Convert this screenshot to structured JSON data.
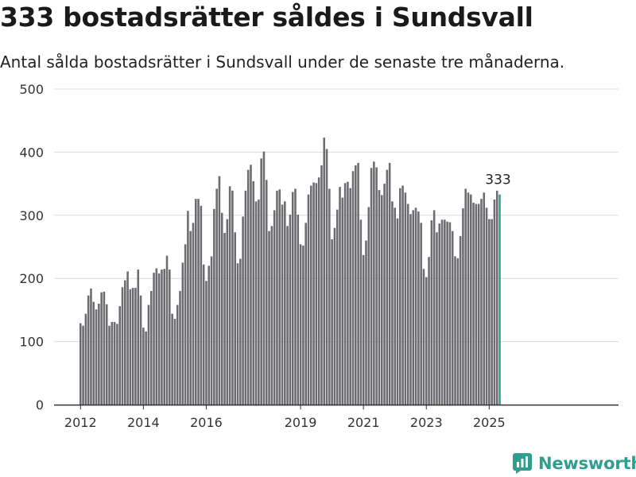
{
  "title": "333 bostadsrätter såldes i Sundsvall",
  "subtitle": "Antal sålda bostadsrätter i Sundsvall under de senaste tre månaderna.",
  "brand": "Newsworthy",
  "colors": {
    "bar": "#6b6b70",
    "highlight": "#2f9e8f",
    "grid": "#dcdcdc",
    "brand": "#2f9e8f"
  },
  "chart_data": {
    "type": "bar",
    "x_start": "2012-01",
    "x_end": "2025-04",
    "ylim": [
      0,
      500
    ],
    "yticks": [
      0,
      100,
      200,
      300,
      400,
      500
    ],
    "xticks": [
      2012,
      2014,
      2016,
      2019,
      2021,
      2023,
      2025
    ],
    "values": [
      129,
      125,
      144,
      173,
      184,
      163,
      151,
      160,
      178,
      179,
      159,
      125,
      131,
      131,
      128,
      156,
      186,
      197,
      211,
      183,
      185,
      185,
      214,
      173,
      122,
      116,
      158,
      180,
      209,
      216,
      208,
      214,
      215,
      236,
      214,
      144,
      136,
      158,
      180,
      225,
      254,
      307,
      275,
      288,
      326,
      326,
      315,
      222,
      196,
      220,
      235,
      310,
      342,
      362,
      304,
      272,
      294,
      346,
      339,
      273,
      224,
      231,
      298,
      339,
      372,
      380,
      354,
      322,
      325,
      390,
      401,
      356,
      275,
      283,
      308,
      339,
      341,
      317,
      322,
      283,
      301,
      337,
      342,
      301,
      254,
      252,
      288,
      333,
      347,
      352,
      351,
      360,
      379,
      423,
      405,
      342,
      262,
      280,
      309,
      345,
      328,
      351,
      353,
      343,
      370,
      379,
      383,
      293,
      237,
      260,
      313,
      375,
      385,
      376,
      340,
      332,
      350,
      372,
      383,
      322,
      312,
      295,
      343,
      347,
      336,
      318,
      302,
      308,
      312,
      306,
      288,
      215,
      202,
      234,
      292,
      308,
      273,
      287,
      293,
      293,
      290,
      289,
      275,
      235,
      232,
      267,
      311,
      342,
      336,
      333,
      320,
      318,
      318,
      326,
      336,
      312,
      294,
      294,
      325,
      339,
      333
    ],
    "highlight_last": true,
    "last_label": "333",
    "grid": true
  }
}
